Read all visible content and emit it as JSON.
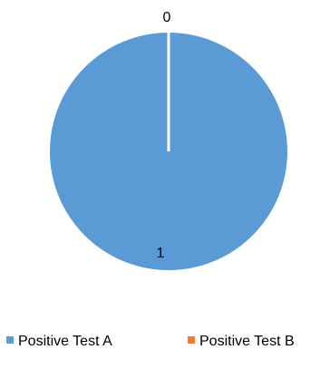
{
  "chart_data": {
    "type": "pie",
    "categories": [
      "Positive Test A",
      "Positive Test B"
    ],
    "values": [
      1,
      0
    ],
    "data_labels": [
      "1",
      "0"
    ],
    "colors": [
      "#5B9BD5",
      "#ED7D31"
    ],
    "title": "",
    "legend_position": "bottom"
  }
}
